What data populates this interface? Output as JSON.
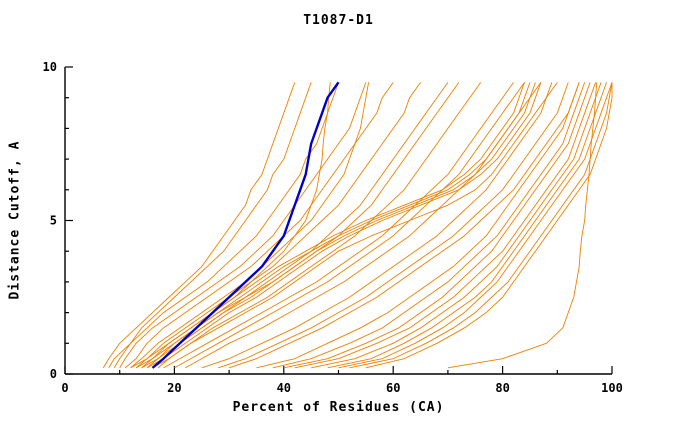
{
  "chart_data": {
    "type": "line",
    "title": "T1087-D1",
    "xlabel": "Percent of Residues (CA)",
    "ylabel": "Distance Cutoff, A",
    "xlim": [
      0,
      100
    ],
    "ylim": [
      0,
      10
    ],
    "x_ticks": {
      "major": [
        0,
        20,
        40,
        60,
        80,
        100
      ],
      "minor": [
        10,
        30,
        50,
        70,
        90
      ]
    },
    "y_ticks": {
      "major": [
        0,
        5,
        10
      ],
      "minor": [
        1,
        2,
        3,
        4,
        6,
        7,
        8,
        9
      ]
    },
    "grid": false,
    "legend": "none",
    "background_color": "#ffffff",
    "axis_color": "#000000",
    "series_color": "#ee8000",
    "highlight_color": "#0000cc",
    "cutoffs": [
      0.2,
      0.5,
      1,
      1.5,
      2,
      2.5,
      3,
      3.5,
      4,
      4.5,
      5,
      5.5,
      6,
      6.5,
      7,
      7.5,
      8,
      8.5,
      9,
      9.5
    ],
    "highlight_series_x": [
      16,
      18,
      21,
      24,
      27,
      30,
      33,
      36,
      38,
      40,
      41,
      42,
      43,
      44,
      44.5,
      45,
      46,
      47,
      48,
      50
    ],
    "orange_series_x": [
      [
        7,
        8,
        10,
        13,
        16,
        19,
        22,
        25,
        27,
        29,
        31,
        33,
        34,
        36,
        37,
        38,
        39,
        40,
        41,
        42
      ],
      [
        8,
        9,
        12,
        15,
        18,
        22,
        26,
        29,
        32,
        35,
        37,
        39,
        41,
        43,
        44,
        46,
        47,
        48,
        49,
        50
      ],
      [
        10,
        11,
        13,
        16,
        20,
        24,
        28,
        32,
        35,
        38,
        40,
        42,
        44,
        46,
        48,
        50,
        52,
        53,
        54,
        55
      ],
      [
        9,
        10,
        12,
        14,
        17,
        20,
        23,
        26,
        29,
        31,
        33,
        35,
        37,
        38,
        40,
        41,
        42,
        43,
        44,
        45
      ],
      [
        12,
        14,
        17,
        21,
        25,
        29,
        33,
        36,
        39,
        42,
        45,
        47,
        49,
        51,
        52,
        53,
        54,
        54.5,
        55,
        55.5
      ],
      [
        14,
        16,
        19,
        23,
        27,
        31,
        34,
        37,
        40,
        42,
        44,
        45,
        46,
        46.5,
        47,
        47.2,
        47.5,
        48,
        48.2,
        48.5
      ],
      [
        11,
        13,
        15,
        18,
        22,
        26,
        30,
        34,
        37,
        40,
        43,
        45,
        47,
        49,
        51,
        53,
        55,
        57,
        58,
        60
      ],
      [
        13,
        15,
        18,
        22,
        26,
        30,
        34,
        38,
        41,
        44,
        47,
        50,
        52,
        54,
        56,
        58,
        60,
        62,
        63,
        65
      ],
      [
        15,
        17,
        20,
        24,
        28,
        33,
        37,
        41,
        45,
        48,
        51,
        54,
        56,
        58,
        60,
        62,
        64,
        66,
        68,
        70
      ],
      [
        16,
        18,
        21,
        25,
        29,
        34,
        38,
        42,
        46,
        50,
        53,
        56,
        58,
        60,
        62,
        64,
        66,
        68,
        70,
        72
      ],
      [
        17,
        19,
        23,
        27,
        32,
        37,
        41,
        45,
        49,
        53,
        56,
        59,
        62,
        64,
        66,
        68,
        70,
        72,
        74,
        76
      ],
      [
        18,
        21,
        26,
        31,
        36,
        41,
        46,
        50,
        54,
        58,
        61,
        64,
        67,
        70,
        72,
        74,
        76,
        78,
        80,
        82
      ],
      [
        20,
        23,
        28,
        33,
        38,
        43,
        48,
        52,
        56,
        60,
        63,
        66,
        69,
        72,
        74,
        76,
        78,
        80,
        82,
        84
      ],
      [
        22,
        25,
        30,
        36,
        41,
        46,
        51,
        55,
        59,
        63,
        66,
        69,
        72,
        75,
        77,
        79,
        81,
        83,
        85,
        87
      ],
      [
        25,
        30,
        36,
        42,
        47,
        52,
        56,
        60,
        64,
        68,
        71,
        74,
        77,
        79,
        81,
        83,
        85,
        87,
        88,
        90
      ],
      [
        28,
        33,
        39,
        45,
        50,
        55,
        59,
        63,
        67,
        71,
        74,
        77,
        80,
        82,
        84,
        86,
        88,
        90,
        91,
        92
      ],
      [
        30,
        35,
        41,
        47,
        52,
        57,
        61,
        65,
        69,
        73,
        76,
        79,
        82,
        84,
        86,
        88,
        90,
        92,
        93,
        94
      ],
      [
        35,
        42,
        48,
        54,
        59,
        63,
        67,
        71,
        74,
        77,
        79,
        81,
        83,
        85,
        87,
        89,
        91,
        92,
        93,
        94
      ],
      [
        38,
        45,
        52,
        58,
        62,
        66,
        70,
        73,
        76,
        79,
        81,
        83,
        85,
        87,
        89,
        91,
        92,
        93,
        94,
        95
      ],
      [
        40,
        48,
        55,
        61,
        65,
        69,
        72,
        75,
        78,
        80,
        82,
        84,
        86,
        88,
        90,
        92,
        93,
        94,
        95,
        96
      ],
      [
        42,
        50,
        57,
        63,
        67,
        71,
        74,
        77,
        80,
        82,
        84,
        86,
        88,
        90,
        92,
        93,
        94,
        95,
        96,
        97
      ],
      [
        45,
        53,
        60,
        65,
        69,
        73,
        76,
        79,
        81,
        83,
        85,
        87,
        89,
        91,
        93,
        94,
        95,
        96,
        97,
        98
      ],
      [
        48,
        56,
        62,
        67,
        71,
        75,
        78,
        80,
        82,
        84,
        86,
        88,
        90,
        92,
        94,
        95,
        96,
        97,
        98,
        99
      ],
      [
        50,
        58,
        64,
        69,
        73,
        76,
        79,
        81,
        83,
        85,
        87,
        89,
        91,
        93,
        95,
        96,
        97,
        98,
        99,
        100
      ],
      [
        52,
        60,
        66,
        71,
        75,
        78,
        81,
        83,
        85,
        87,
        89,
        91,
        93,
        95,
        96,
        97,
        98,
        99,
        99.5,
        100
      ],
      [
        55,
        62,
        68,
        73,
        77,
        80,
        82,
        84,
        86,
        88,
        90,
        92,
        94,
        96,
        97,
        98,
        99,
        99.5,
        100,
        100
      ],
      [
        70,
        80,
        88,
        91,
        92,
        93,
        93.5,
        94,
        94.2,
        94.5,
        95,
        95.2,
        95.5,
        95.8,
        96,
        96.2,
        96.5,
        96.8,
        97,
        97.2
      ],
      [
        15,
        18,
        22,
        26,
        30,
        35,
        39,
        43,
        47,
        52,
        58,
        65,
        72,
        76,
        79,
        81,
        83,
        85,
        86,
        87
      ],
      [
        16,
        19,
        23,
        28,
        33,
        38,
        42,
        46,
        50,
        56,
        63,
        70,
        75,
        78,
        80,
        82,
        84,
        86,
        88,
        89
      ],
      [
        14,
        17,
        21,
        25,
        29,
        33,
        38,
        42,
        46,
        51,
        57,
        64,
        71,
        75,
        78,
        80,
        82,
        84,
        85,
        86
      ],
      [
        13,
        16,
        20,
        24,
        28,
        32,
        36,
        40,
        45,
        50,
        56,
        63,
        70,
        74,
        77,
        79,
        81,
        83,
        84,
        85
      ],
      [
        12,
        15,
        19,
        23,
        27,
        31,
        35,
        39,
        44,
        49,
        55,
        62,
        69,
        73,
        76,
        78,
        80,
        82,
        83,
        84
      ]
    ]
  }
}
